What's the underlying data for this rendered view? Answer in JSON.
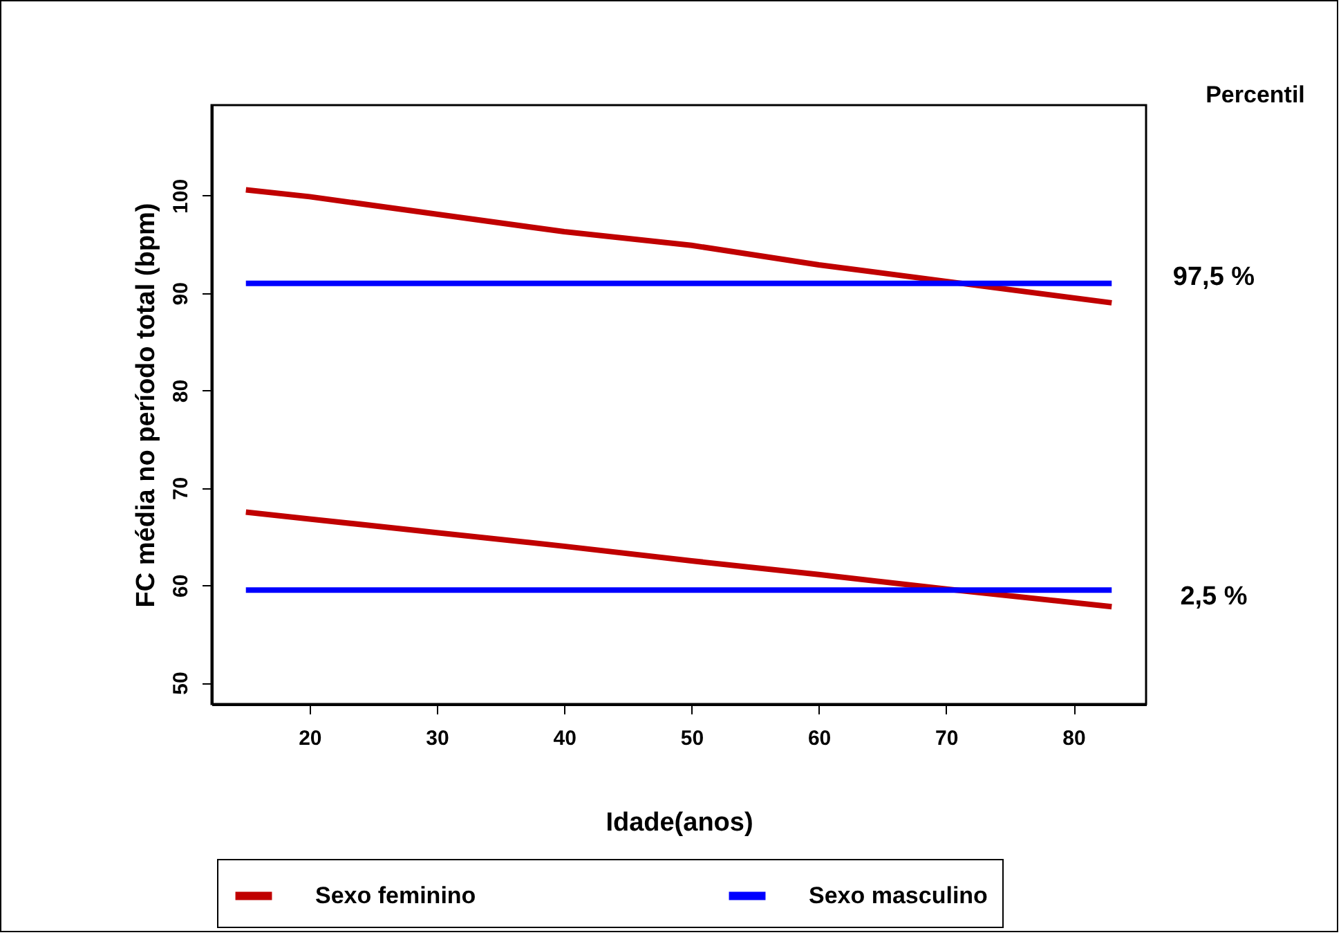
{
  "chart_data": {
    "type": "line",
    "xlabel": "Idade(anos)",
    "ylabel": "FC média no período total (bpm)",
    "xlim": [
      12.3,
      85.7
    ],
    "ylim": [
      47.8,
      109.3
    ],
    "xticks": [
      20,
      30,
      40,
      50,
      60,
      70,
      80
    ],
    "yticks": [
      50,
      60,
      70,
      80,
      90,
      100
    ],
    "legend": "bottom",
    "series": [
      {
        "name": "Sexo feminino",
        "color": "#c00000",
        "x": [
          15,
          20,
          30,
          40,
          50,
          60,
          70,
          83
        ],
        "values": [
          100.6,
          99.9,
          98.1,
          96.3,
          94.9,
          92.9,
          91.2,
          89.0
        ]
      },
      {
        "color": "#c00000",
        "x": [
          15,
          20,
          30,
          40,
          50,
          60,
          70,
          83
        ],
        "values": [
          67.5,
          66.8,
          65.4,
          64.0,
          62.5,
          61.1,
          59.6,
          57.8
        ]
      },
      {
        "name": "Sexo masculino",
        "color": "#0000ff",
        "x": [
          15,
          83
        ],
        "values": [
          91.0,
          91.0
        ]
      },
      {
        "color": "#0000ff",
        "x": [
          15,
          83
        ],
        "values": [
          59.5,
          59.5
        ]
      }
    ],
    "annotations": [
      "Percentil",
      "97,5 %",
      "2,5 %"
    ]
  }
}
